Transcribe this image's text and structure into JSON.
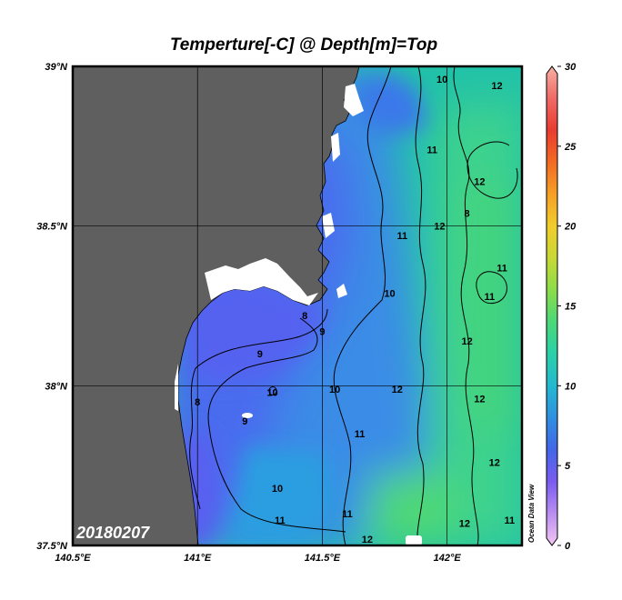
{
  "chart_data": {
    "type": "heatmap",
    "title": "Temperture[-C] @ Depth[m]=Top",
    "date_label": "20180207",
    "watermark": "Ocean Data View",
    "x_axis": {
      "range": [
        140.5,
        142.3
      ],
      "ticks": [
        {
          "value": 140.5,
          "label": "140.5°E"
        },
        {
          "value": 141.0,
          "label": "141°E"
        },
        {
          "value": 141.5,
          "label": "141.5°E"
        },
        {
          "value": 142.0,
          "label": "142°E"
        }
      ]
    },
    "y_axis": {
      "range": [
        37.5,
        39.0
      ],
      "ticks": [
        {
          "value": 37.5,
          "label": "37.5°N"
        },
        {
          "value": 38.0,
          "label": "38°N"
        },
        {
          "value": 38.5,
          "label": "38.5°N"
        },
        {
          "value": 39.0,
          "label": "39°N"
        }
      ]
    },
    "grid": true,
    "colorbar": {
      "range": [
        0,
        30
      ],
      "ticks": [
        {
          "value": 0,
          "label": "0"
        },
        {
          "value": 5,
          "label": "5"
        },
        {
          "value": 10,
          "label": "10"
        },
        {
          "value": 15,
          "label": "15"
        },
        {
          "value": 20,
          "label": "20"
        },
        {
          "value": 25,
          "label": "25"
        },
        {
          "value": 30,
          "label": "30"
        }
      ],
      "colors": [
        "#f4c6f2",
        "#b98ef0",
        "#7a5cf0",
        "#4266e8",
        "#2f8fe0",
        "#25b8d0",
        "#2ad0a8",
        "#4bd878",
        "#8cdc4a",
        "#c8d836",
        "#f0cc2c",
        "#f6a026",
        "#f26a24",
        "#e83c30",
        "#f06a66",
        "#f7b0a4"
      ]
    },
    "land_color": "#5f5f5f",
    "contour_labels": [
      {
        "lon": 141.98,
        "lat": 38.96,
        "text": "10"
      },
      {
        "lon": 142.2,
        "lat": 38.94,
        "text": "12"
      },
      {
        "lon": 141.94,
        "lat": 38.74,
        "text": "11"
      },
      {
        "lon": 142.13,
        "lat": 38.64,
        "text": "12"
      },
      {
        "lon": 142.08,
        "lat": 38.54,
        "text": "8"
      },
      {
        "lon": 141.82,
        "lat": 38.47,
        "text": "11"
      },
      {
        "lon": 141.97,
        "lat": 38.5,
        "text": "12"
      },
      {
        "lon": 142.22,
        "lat": 38.37,
        "text": "11"
      },
      {
        "lon": 142.17,
        "lat": 38.28,
        "text": "11"
      },
      {
        "lon": 141.77,
        "lat": 38.29,
        "text": "10"
      },
      {
        "lon": 141.43,
        "lat": 38.22,
        "text": "8"
      },
      {
        "lon": 141.5,
        "lat": 38.17,
        "text": "9"
      },
      {
        "lon": 142.08,
        "lat": 38.14,
        "text": "12"
      },
      {
        "lon": 141.25,
        "lat": 38.1,
        "text": "9"
      },
      {
        "lon": 141.55,
        "lat": 37.99,
        "text": "10"
      },
      {
        "lon": 141.8,
        "lat": 37.99,
        "text": "12"
      },
      {
        "lon": 142.13,
        "lat": 37.96,
        "text": "12"
      },
      {
        "lon": 141.0,
        "lat": 37.95,
        "text": "8"
      },
      {
        "lon": 141.3,
        "lat": 37.98,
        "text": "10"
      },
      {
        "lon": 141.19,
        "lat": 37.89,
        "text": "9"
      },
      {
        "lon": 141.65,
        "lat": 37.85,
        "text": "11"
      },
      {
        "lon": 142.19,
        "lat": 37.76,
        "text": "12"
      },
      {
        "lon": 141.32,
        "lat": 37.68,
        "text": "10"
      },
      {
        "lon": 141.33,
        "lat": 37.58,
        "text": "11"
      },
      {
        "lon": 141.6,
        "lat": 37.6,
        "text": "11"
      },
      {
        "lon": 141.68,
        "lat": 37.52,
        "text": "12"
      },
      {
        "lon": 142.07,
        "lat": 37.57,
        "text": "12"
      },
      {
        "lon": 142.25,
        "lat": 37.58,
        "text": "11"
      }
    ]
  }
}
